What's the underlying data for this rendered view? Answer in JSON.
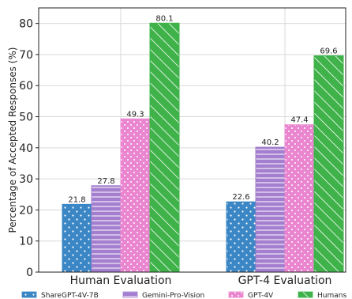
{
  "chart_data": {
    "type": "bar",
    "ylabel": "Percentage of Accepted Responses (%)",
    "categories": [
      "Human Evaluation",
      "GPT-4 Evaluation"
    ],
    "ylim": [
      0,
      85
    ],
    "yticks": [
      0,
      10,
      20,
      30,
      40,
      50,
      60,
      70,
      80
    ],
    "grid": true,
    "legend_position": "bottom",
    "series": [
      {
        "name": "ShareGPT-4V-7B",
        "values": [
          21.8,
          22.6
        ],
        "color": "#3b86c4",
        "pattern": "dots"
      },
      {
        "name": "Gemini-Pro-Vision",
        "values": [
          27.8,
          40.2
        ],
        "color": "#a57fcf",
        "pattern": "horizontal-lines"
      },
      {
        "name": "GPT-4V",
        "values": [
          49.3,
          47.4
        ],
        "color": "#ea85cf",
        "pattern": "dots"
      },
      {
        "name": "Humans",
        "values": [
          80.1,
          69.6
        ],
        "color": "#3fb24a",
        "pattern": "diagonal-lines"
      }
    ]
  }
}
